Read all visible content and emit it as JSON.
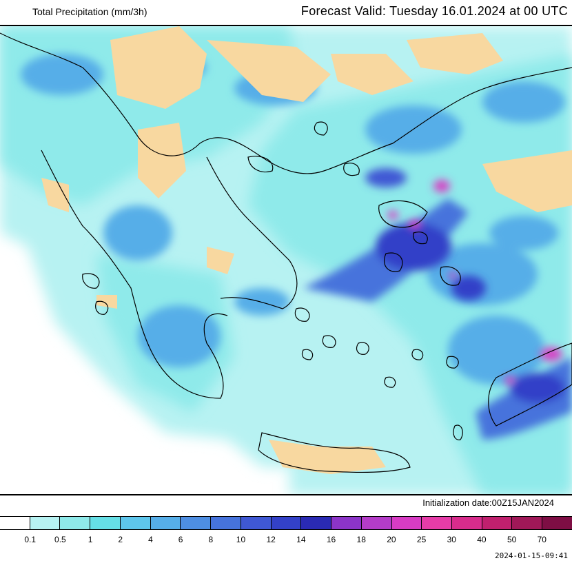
{
  "header": {
    "product_title": "Total Precipitation (mm/3h)",
    "forecast_valid": "Forecast Valid:  Tuesday 16.01.2024 at 00 UTC"
  },
  "footer": {
    "initialization": "Initialization date:00Z15JAN2024",
    "timestamp": "2024-01-15-09:41"
  },
  "legend": {
    "unit": "mm/3h",
    "colors": [
      "#ffffff",
      "#b7f2f2",
      "#8feaea",
      "#66dfe6",
      "#5ec6ec",
      "#56aee8",
      "#4e8ee2",
      "#4673dc",
      "#3f58d4",
      "#3341c8",
      "#2a2ab4",
      "#8c34c8",
      "#b43cc8",
      "#d83cc4",
      "#e63ca8",
      "#d82c8c",
      "#c0206e",
      "#a01858",
      "#7e0e44"
    ],
    "labels": [
      "0.1",
      "0.5",
      "1",
      "2",
      "4",
      "6",
      "8",
      "10",
      "12",
      "14",
      "16",
      "18",
      "20",
      "25",
      "30",
      "40",
      "50",
      "70"
    ]
  },
  "map": {
    "land_dry_color": "#f8d8a0",
    "sea_color": "#ffffff",
    "coastline_color": "#000000"
  }
}
